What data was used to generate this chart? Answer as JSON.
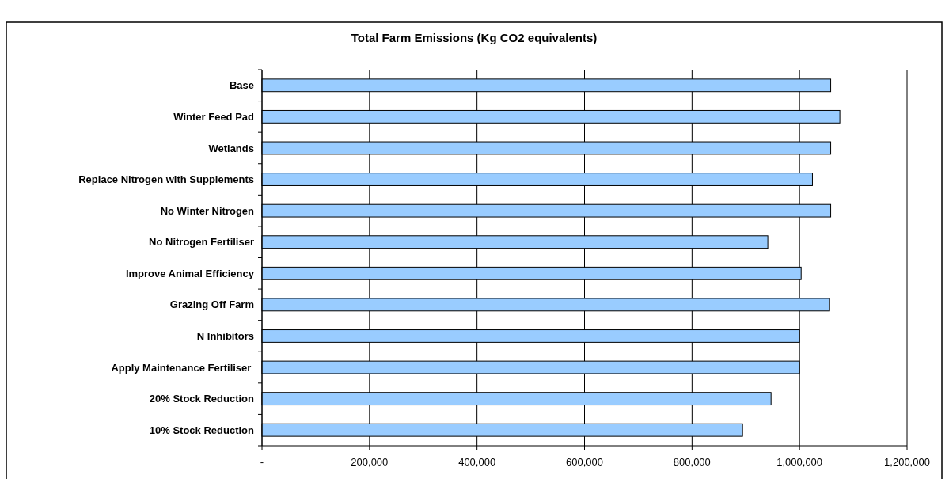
{
  "chart_data": {
    "type": "bar",
    "orientation": "horizontal",
    "title": "Total Farm Emissions (Kg CO2 equivalents)",
    "categories": [
      "Base",
      "Winter Feed Pad",
      "Wetlands",
      "Replace Nitrogen with Supplements",
      "No Winter Nitrogen",
      "No Nitrogen Fertiliser",
      "Improve Animal Efficiency",
      "Grazing Off Farm",
      "N Inhibitors",
      "Apply Maintenance Fertiliser ",
      "20% Stock Reduction",
      "10% Stock Reduction"
    ],
    "values": [
      1058000,
      1075000,
      1058000,
      1024000,
      1058000,
      941000,
      1003000,
      1056000,
      1000000,
      1000000,
      947000,
      894000
    ],
    "color": "#99ccff",
    "xlim": [
      0,
      1200000
    ],
    "xticks": [
      {
        "value": 0,
        "label": "-"
      },
      {
        "value": 200000,
        "label": "200,000"
      },
      {
        "value": 400000,
        "label": "400,000"
      },
      {
        "value": 600000,
        "label": "600,000"
      },
      {
        "value": 800000,
        "label": "800,000"
      },
      {
        "value": 1000000,
        "label": "1,000,000"
      },
      {
        "value": 1200000,
        "label": "1,200,000"
      }
    ],
    "grid": "x"
  }
}
